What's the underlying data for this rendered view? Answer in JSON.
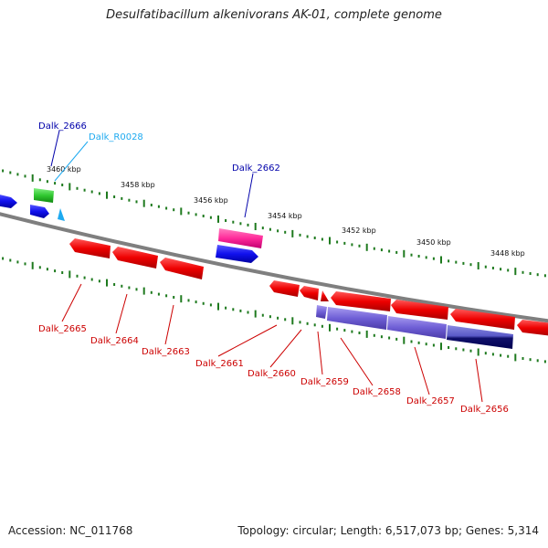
{
  "title": "Desulfatibacillum alkenivorans AK-01, complete genome",
  "footer": {
    "accession": "Accession: NC_011768",
    "topology": "Topology: circular; Length: 6,517,073 bp; Genes: 5,314"
  },
  "colors": {
    "backbone": "#7f7f7f",
    "forward_cds": "#1f1fe6",
    "reverse_cds": "#e60d0d",
    "reverse_cds_alt": "#7a6ad8",
    "pseudo": "#ff3aa0",
    "trna": "#3acc3a",
    "ncrna": "#1eaaf0",
    "tick": "#1e7a1e"
  },
  "scale_labels": [
    "3460 kbp",
    "3458 kbp",
    "3456 kbp",
    "3454 kbp",
    "3452 kbp",
    "3450 kbp",
    "3448 kbp"
  ],
  "gene_labels": {
    "dalk_2666": "Dalk_2666",
    "dalk_r0028": "Dalk_R0028",
    "dalk_2662": "Dalk_2662",
    "dalk_2665": "Dalk_2665",
    "dalk_2664": "Dalk_2664",
    "dalk_2663": "Dalk_2663",
    "dalk_2661": "Dalk_2661",
    "dalk_2660": "Dalk_2660",
    "dalk_2659": "Dalk_2659",
    "dalk_2658": "Dalk_2658",
    "dalk_2657": "Dalk_2657",
    "dalk_2656": "Dalk_2656"
  }
}
